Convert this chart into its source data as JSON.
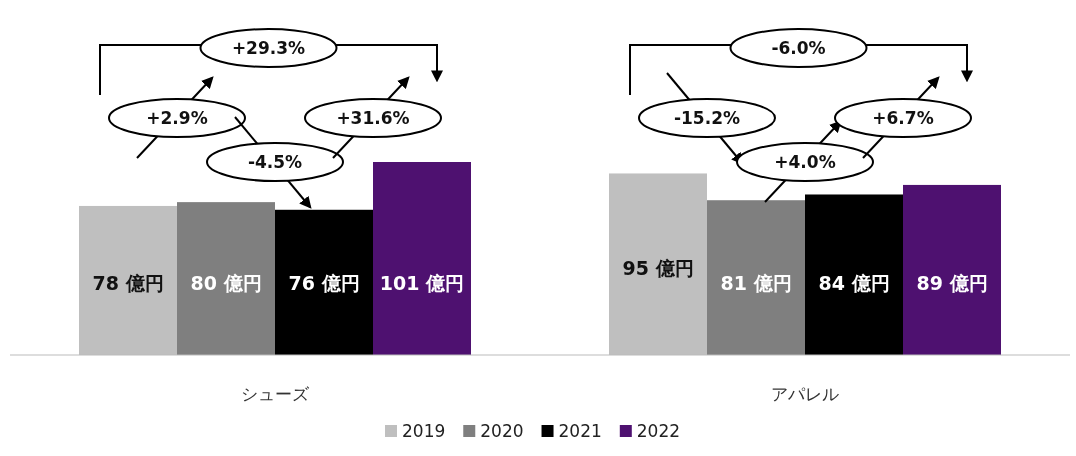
{
  "chart_data": {
    "type": "bar",
    "categories": [
      "シューズ",
      "アパレル"
    ],
    "series": [
      {
        "name": "2019",
        "color": "#bfbfbf",
        "values": [
          78,
          95
        ],
        "value_labels": [
          "78 億円",
          "95 億円"
        ]
      },
      {
        "name": "2020",
        "color": "#7f7f7f",
        "values": [
          80,
          81
        ],
        "value_labels": [
          "80 億円",
          "81 億円"
        ]
      },
      {
        "name": "2021",
        "color": "#000000",
        "values": [
          76,
          84
        ],
        "value_labels": [
          "76 億円",
          "84 億円"
        ]
      },
      {
        "name": "2022",
        "color": "#4e1170",
        "values": [
          101,
          89
        ],
        "value_labels": [
          "101 億円",
          "89 億円"
        ]
      }
    ],
    "annotations": [
      "+29.3%",
      "+2.9%",
      "-4.5%",
      "+31.6%",
      "-6.0%",
      "-15.2%",
      "+4.0%",
      "+6.7%"
    ],
    "legend": "bottom"
  }
}
